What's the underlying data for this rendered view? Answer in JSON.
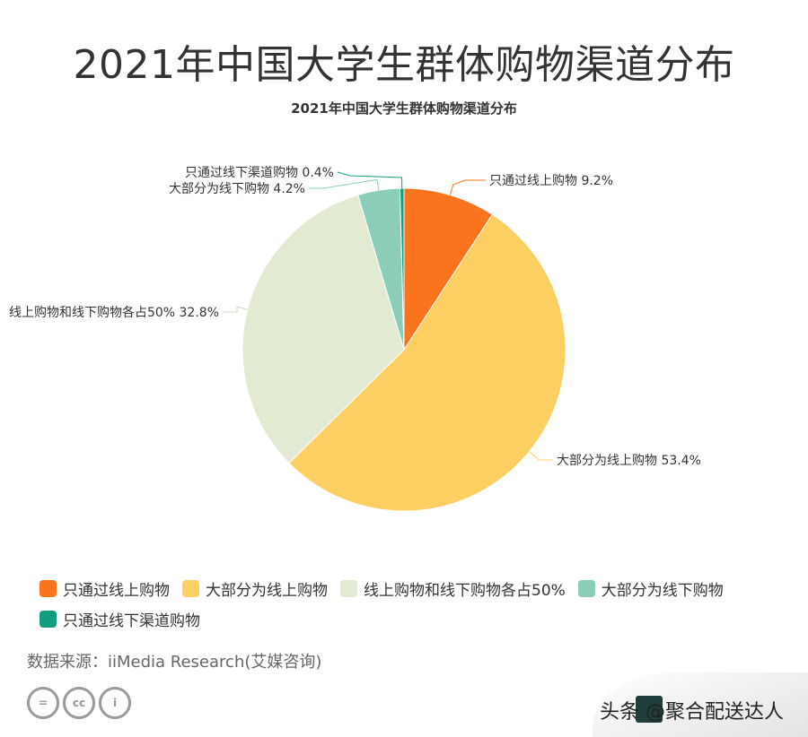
{
  "header": {
    "title": "2021年中国大学生群体购物渠道分布",
    "subtitle": "2021年中国大学生群体购物渠道分布"
  },
  "chart_data": {
    "type": "pie",
    "title": "2021年中国大学生群体购物渠道分布",
    "slices": [
      {
        "label": "只通过线上购物",
        "value": 9.2,
        "display": "只通过线上购物 9.2%",
        "color": "#fa741e"
      },
      {
        "label": "大部分为线上购物",
        "value": 53.4,
        "display": "大部分为线上购物 53.4%",
        "color": "#fccf63"
      },
      {
        "label": "线上购物和线下购物各占50%",
        "value": 32.8,
        "display": "线上购物和线下购物各占50% 32.8%",
        "color": "#e2ead2"
      },
      {
        "label": "大部分为线下购物",
        "value": 4.2,
        "display": "大部分为线下购物 4.2%",
        "color": "#8ccdb8"
      },
      {
        "label": "只通过线下渠道购物",
        "value": 0.4,
        "display": "只通过线下渠道购物 0.4%",
        "color": "#139d80"
      }
    ],
    "legend_position": "bottom-left"
  },
  "footer": {
    "source": "数据来源：iiMedia Research(艾媒咨询)",
    "license_icons": [
      "equals-icon",
      "cc-icon",
      "person-icon"
    ],
    "license_glyphs": [
      "=",
      "cc",
      "i"
    ],
    "watermark": "头条 @聚合配送达人"
  }
}
